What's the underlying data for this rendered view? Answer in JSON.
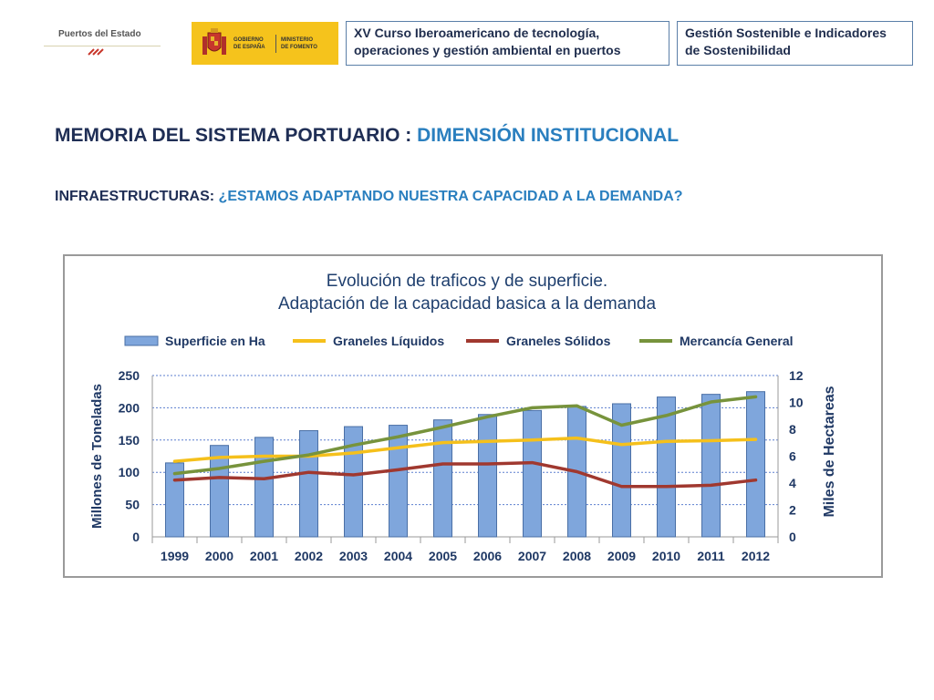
{
  "header": {
    "logo_pde": "Puertos del Estado",
    "logo_gobierno": [
      "GOBIERNO",
      "DE ESPAÑA"
    ],
    "logo_ministerio": [
      "MINISTERIO",
      "DE FOMENTO"
    ],
    "course_box": "XV Curso Iberoamericano de tecnología, operaciones y gestión ambiental en puertos",
    "topic_box": "Gestión Sostenible e Indicadores de Sostenibilidad"
  },
  "main": {
    "title_prefix": "MEMORIA DEL SISTEMA PORTUARIO : ",
    "title_accent": "DIMENSIÓN INSTITUCIONAL",
    "subtitle_prefix": "INFRAESTRUCTURAS: ",
    "subtitle_accent": "¿ESTAMOS ADAPTANDO NUESTRA CAPACIDAD A LA DEMANDA?"
  },
  "chart_data": {
    "type": "bar",
    "title": "Evolución de traficos y de superficie.",
    "subtitle": "Adaptación de la capacidad basica a la demanda",
    "ylabel": "Millones de Toneladas",
    "y2label": "Miles de Hectareas",
    "ylim": [
      0,
      250
    ],
    "y2lim": [
      0,
      12
    ],
    "yticks": [
      "250",
      "200",
      "150",
      "100",
      "50",
      "0"
    ],
    "y2ticks": [
      "12",
      "10",
      "8",
      "6",
      "4",
      "2",
      "0"
    ],
    "categories": [
      "1999",
      "2000",
      "2001",
      "2002",
      "2003",
      "2004",
      "2005",
      "2006",
      "2007",
      "2008",
      "2009",
      "2010",
      "2011",
      "2012"
    ],
    "grid": true,
    "legend_position": "top",
    "series": [
      {
        "name": "Superficie en Ha",
        "type": "bar",
        "axis": "right",
        "color": "#7fa6dc",
        "values": [
          5.5,
          6.8,
          7.4,
          7.9,
          8.2,
          8.3,
          8.7,
          9.1,
          9.4,
          9.7,
          9.9,
          10.4,
          10.6,
          10.8
        ]
      },
      {
        "name": "Graneles Líquidos",
        "type": "line",
        "axis": "left",
        "color": "#f5c01b",
        "values": [
          117,
          123,
          125,
          125,
          130,
          138,
          146,
          148,
          150,
          153,
          143,
          148,
          149,
          151
        ]
      },
      {
        "name": "Graneles Sólidos",
        "type": "line",
        "axis": "left",
        "color": "#a0382f",
        "values": [
          88,
          92,
          90,
          100,
          96,
          104,
          113,
          113,
          115,
          101,
          78,
          78,
          80,
          88
        ]
      },
      {
        "name": "Mercancía General",
        "type": "line",
        "axis": "left",
        "color": "#77933c",
        "values": [
          98,
          106,
          117,
          127,
          142,
          155,
          170,
          186,
          200,
          203,
          173,
          188,
          209,
          217
        ]
      }
    ]
  }
}
